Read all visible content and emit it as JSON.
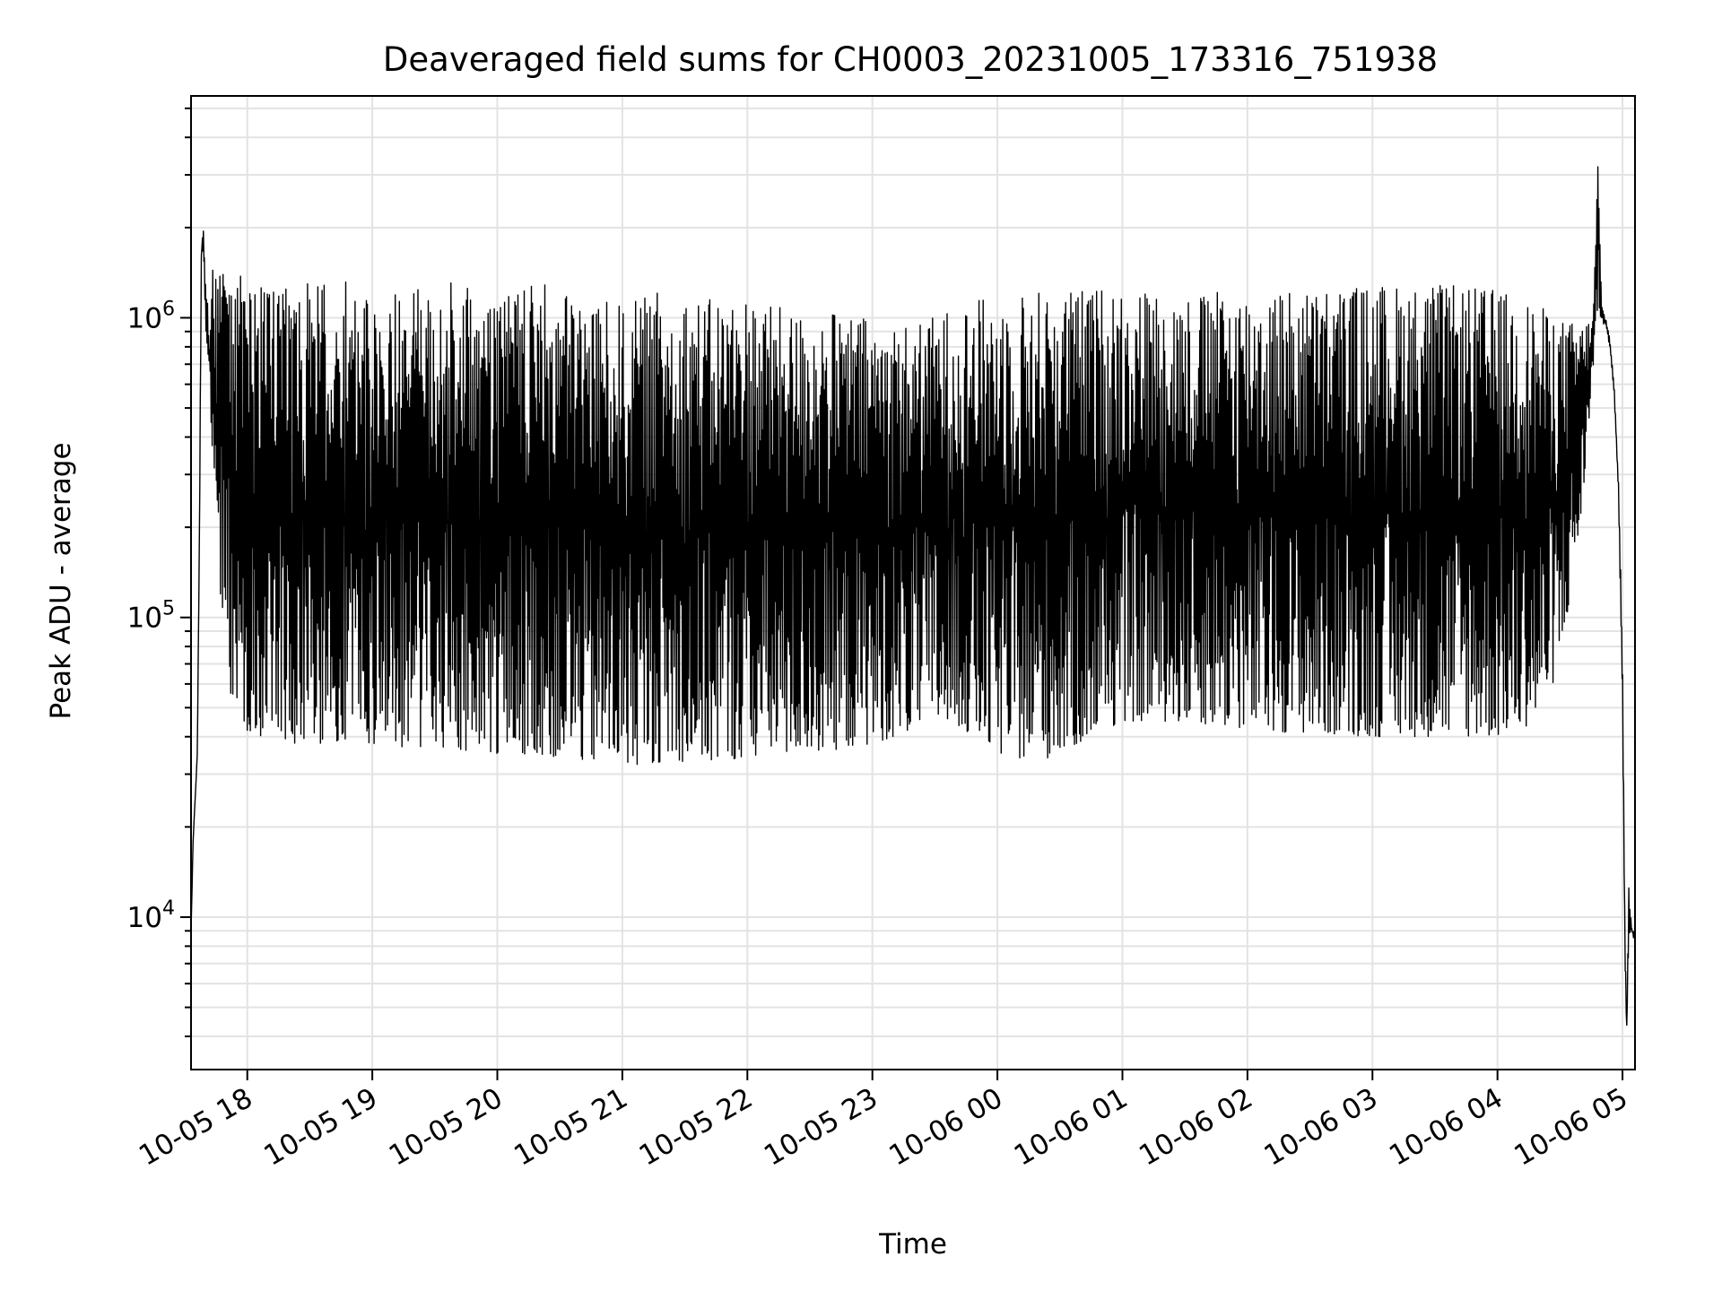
{
  "chart_data": {
    "type": "line",
    "title": "Deaveraged field sums for CH0003_20231005_173316_751938",
    "xlabel": "Time",
    "ylabel": "Peak ADU - average",
    "x_scale": "time",
    "y_scale": "log",
    "xlim": [
      "2023-10-05 17:33",
      "2023-10-06 05:06"
    ],
    "ylim": [
      3100,
      5500000
    ],
    "x_tick_values": [
      "2023-10-05 18:00",
      "2023-10-05 19:00",
      "2023-10-05 20:00",
      "2023-10-05 21:00",
      "2023-10-05 22:00",
      "2023-10-05 23:00",
      "2023-10-06 00:00",
      "2023-10-06 01:00",
      "2023-10-06 02:00",
      "2023-10-06 03:00",
      "2023-10-06 04:00",
      "2023-10-06 05:00"
    ],
    "x_tick_labels": [
      "10-05 18",
      "10-05 19",
      "10-05 20",
      "10-05 21",
      "10-05 22",
      "10-05 23",
      "10-06 00",
      "10-06 01",
      "10-06 02",
      "10-06 03",
      "10-06 04",
      "10-06 05"
    ],
    "y_major_ticks": [
      {
        "value": 10000,
        "base": "10",
        "exp": "4"
      },
      {
        "value": 100000,
        "base": "10",
        "exp": "5"
      },
      {
        "value": 1000000,
        "base": "10",
        "exp": "6"
      }
    ],
    "grid": true,
    "line_color": "#000000",
    "series": [
      {
        "x": [
          "2023-10-05 17:33",
          "2023-10-05 17:34",
          "2023-10-05 17:35",
          "2023-10-05 17:36",
          "2023-10-05 17:37",
          "2023-10-05 17:38",
          "2023-10-05 17:39",
          "2023-10-05 17:40",
          "2023-10-05 17:42",
          "2023-10-05 17:44",
          "2023-10-05 17:46",
          "2023-10-05 17:48",
          "2023-10-05 17:50",
          "2023-10-05 17:53",
          "2023-10-05 17:56",
          "2023-10-05 18:00",
          "2023-10-05 18:05",
          "2023-10-05 18:10",
          "2023-10-05 18:15",
          "2023-10-05 18:20",
          "2023-10-05 18:30",
          "2023-10-05 18:40",
          "2023-10-05 18:50",
          "2023-10-05 19:00",
          "2023-10-05 19:15",
          "2023-10-05 19:30",
          "2023-10-05 19:45",
          "2023-10-05 20:00",
          "2023-10-05 20:20",
          "2023-10-05 20:40",
          "2023-10-05 21:00",
          "2023-10-05 21:20",
          "2023-10-05 21:40",
          "2023-10-05 22:00",
          "2023-10-05 22:20",
          "2023-10-05 22:40",
          "2023-10-05 23:00",
          "2023-10-05 23:20",
          "2023-10-05 23:40",
          "2023-10-06 00:00",
          "2023-10-06 00:20",
          "2023-10-06 00:40",
          "2023-10-06 01:00",
          "2023-10-06 01:30",
          "2023-10-06 02:00",
          "2023-10-06 02:30",
          "2023-10-06 03:00",
          "2023-10-06 03:30",
          "2023-10-06 04:00",
          "2023-10-06 04:20",
          "2023-10-06 04:30",
          "2023-10-06 04:40",
          "2023-10-06 04:46",
          "2023-10-06 04:48",
          "2023-10-06 04:50",
          "2023-10-06 04:52",
          "2023-10-06 04:54",
          "2023-10-06 04:56",
          "2023-10-06 04:58",
          "2023-10-06 05:00",
          "2023-10-06 05:01",
          "2023-10-06 05:02",
          "2023-10-06 05:03",
          "2023-10-06 05:04",
          "2023-10-06 05:05",
          "2023-10-06 05:06"
        ],
        "high": [
          9000,
          18000,
          25000,
          35000,
          200000,
          1800000,
          2000000,
          1300000,
          1000000,
          1700000,
          1300000,
          1500000,
          1600000,
          1400000,
          1400000,
          1300000,
          1250000,
          1300000,
          1200000,
          1300000,
          1350000,
          1400000,
          1300000,
          1250000,
          1250000,
          1300000,
          1350000,
          1200000,
          1300000,
          1200000,
          1100000,
          1250000,
          1150000,
          1200000,
          1050000,
          1050000,
          1000000,
          950000,
          1100000,
          1200000,
          1250000,
          1250000,
          1300000,
          1200000,
          1250000,
          1250000,
          1300000,
          1300000,
          1250000,
          1100000,
          1000000,
          950000,
          1000000,
          3800000,
          1100000,
          1000000,
          850000,
          600000,
          300000,
          80000,
          12000,
          4200,
          13000,
          10000,
          9000,
          9000
        ],
        "low": [
          9000,
          18000,
          25000,
          35000,
          150000,
          1600000,
          1700000,
          900000,
          500000,
          300000,
          150000,
          100000,
          70000,
          50000,
          45000,
          42000,
          40000,
          40000,
          40000,
          38000,
          38000,
          38000,
          38000,
          38000,
          37000,
          37000,
          36000,
          35000,
          35000,
          33000,
          32000,
          33000,
          33000,
          34000,
          35000,
          36000,
          38000,
          42000,
          44000,
          35000,
          33000,
          38000,
          45000,
          45000,
          42000,
          41000,
          40000,
          40000,
          40000,
          45000,
          70000,
          200000,
          700000,
          1000000,
          1000000,
          900000,
          800000,
          550000,
          250000,
          50000,
          8000,
          4200,
          8500,
          9000,
          8500,
          8500
        ]
      }
    ]
  }
}
